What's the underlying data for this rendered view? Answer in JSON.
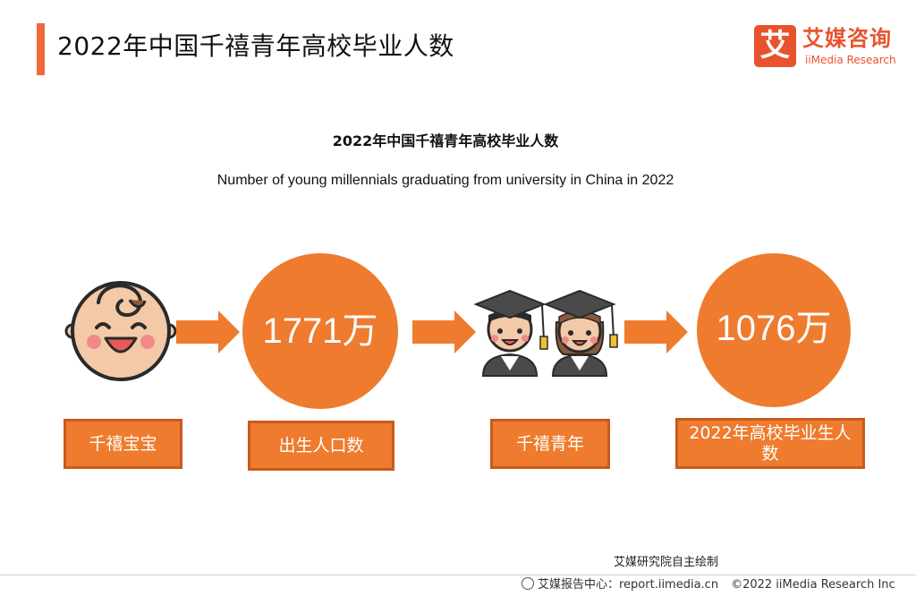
{
  "header": {
    "title": "2022年中国千禧青年高校毕业人数"
  },
  "logo": {
    "mark": "艾",
    "name_cn": "艾媒咨询",
    "name_en": "iiMedia Research"
  },
  "diagram": {
    "title": "2022年中国千禧青年高校毕业人数",
    "subtitle": "Number of young millennials graduating from university in China in 2022",
    "nodes": [
      {
        "label": "千禧宝宝",
        "icon": "baby-face-icon"
      },
      {
        "label": "出生人口数",
        "value": "1771万"
      },
      {
        "label": "千禧青年",
        "icon": "graduates-icon"
      },
      {
        "label": "2022年高校毕业生人数",
        "value": "1076万"
      }
    ],
    "colors": {
      "accent": "#ee7b2e",
      "title_bar": "#ee6a3a",
      "logo": "#e8532e"
    }
  },
  "footer": {
    "credit": "艾媒研究院自主绘制",
    "source": "艾媒报告中心：report.iimedia.cn",
    "copyright": "©2022  iiMedia Research Inc"
  }
}
